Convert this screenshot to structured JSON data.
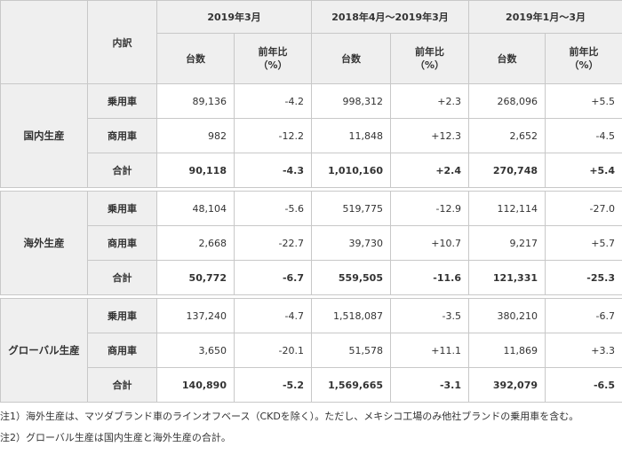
{
  "header": {
    "breakdown": "内訳",
    "periods": [
      "2019年3月",
      "2018年4月～2019年3月",
      "2019年1月～3月"
    ],
    "units_label": "台数",
    "yoy_line1": "前年比",
    "yoy_line2": "（%）"
  },
  "groups": [
    {
      "name": "国内生産",
      "rows": [
        {
          "label": "乗用車",
          "values": [
            "89,136",
            "-4.2",
            "998,312",
            "+2.3",
            "268,096",
            "+5.5"
          ]
        },
        {
          "label": "商用車",
          "values": [
            "982",
            "-12.2",
            "11,848",
            "+12.3",
            "2,652",
            "-4.5"
          ]
        },
        {
          "label": "合計",
          "values": [
            "90,118",
            "-4.3",
            "1,010,160",
            "+2.4",
            "270,748",
            "+5.4"
          ]
        }
      ]
    },
    {
      "name": "海外生産",
      "rows": [
        {
          "label": "乗用車",
          "values": [
            "48,104",
            "-5.6",
            "519,775",
            "-12.9",
            "112,114",
            "-27.0"
          ]
        },
        {
          "label": "商用車",
          "values": [
            "2,668",
            "-22.7",
            "39,730",
            "+10.7",
            "9,217",
            "+5.7"
          ]
        },
        {
          "label": "合計",
          "values": [
            "50,772",
            "-6.7",
            "559,505",
            "-11.6",
            "121,331",
            "-25.3"
          ]
        }
      ]
    },
    {
      "name": "グローバル生産",
      "rows": [
        {
          "label": "乗用車",
          "values": [
            "137,240",
            "-4.7",
            "1,518,087",
            "-3.5",
            "380,210",
            "-6.7"
          ]
        },
        {
          "label": "商用車",
          "values": [
            "3,650",
            "-20.1",
            "51,578",
            "+11.1",
            "11,869",
            "+3.3"
          ]
        },
        {
          "label": "合計",
          "values": [
            "140,890",
            "-5.2",
            "1,569,665",
            "-3.1",
            "392,079",
            "-6.5"
          ]
        }
      ]
    }
  ],
  "notes": [
    "注1）海外生産は、マツダブランド車のラインオフベース（CKDを除く）。ただし、メキシコ工場のみ他社ブランドの乗用車を含む。",
    "注2）グローバル生産は国内生産と海外生産の合計。"
  ]
}
